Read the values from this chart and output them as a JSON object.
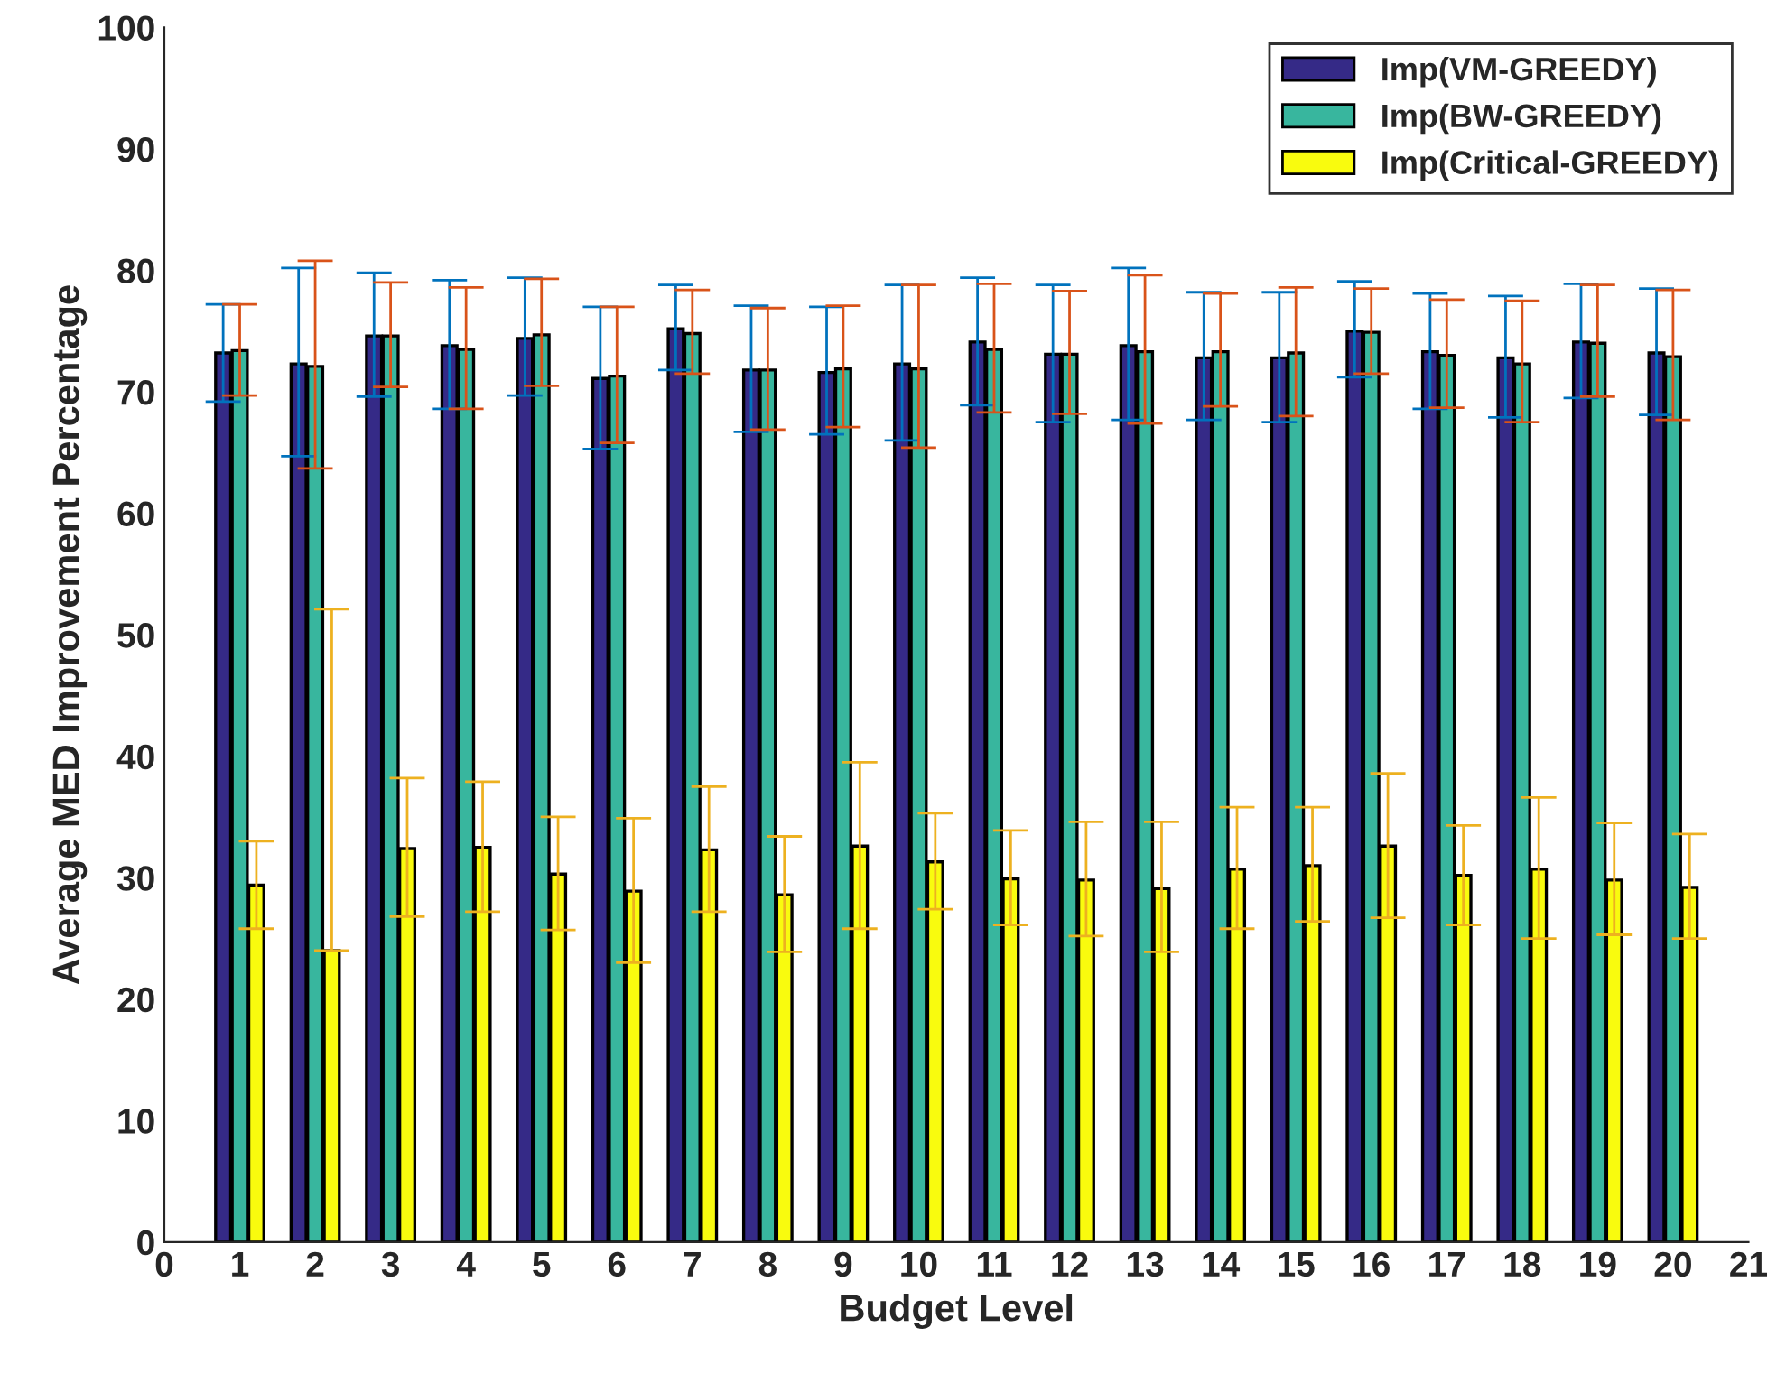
{
  "chart_data": {
    "type": "bar",
    "xlabel": "Budget Level",
    "ylabel": "Average MED Improvement Percentage",
    "x": [
      1,
      2,
      3,
      4,
      5,
      6,
      7,
      8,
      9,
      10,
      11,
      12,
      13,
      14,
      15,
      16,
      17,
      18,
      19,
      20
    ],
    "xlim": [
      0,
      21
    ],
    "xticks": [
      0,
      1,
      2,
      3,
      4,
      5,
      6,
      7,
      8,
      9,
      10,
      11,
      12,
      13,
      14,
      15,
      16,
      17,
      18,
      19,
      20,
      21
    ],
    "ylim": [
      0,
      100
    ],
    "yticks": [
      0,
      10,
      20,
      30,
      40,
      50,
      60,
      70,
      80,
      90,
      100
    ],
    "grid": false,
    "legend": "top right",
    "series": [
      {
        "name": "Imp(VM-GREEDY)",
        "color": "#352a87",
        "values": [
          73.2,
          72.3,
          74.6,
          73.8,
          74.4,
          71.1,
          75.2,
          71.8,
          71.6,
          72.3,
          74.1,
          73.1,
          73.8,
          72.8,
          72.8,
          75.0,
          73.3,
          72.8,
          74.1,
          73.2
        ],
        "errors": [
          [
            69.2,
            77.2
          ],
          [
            64.7,
            80.2
          ],
          [
            69.6,
            79.8
          ],
          [
            68.6,
            79.2
          ],
          [
            69.7,
            79.4
          ],
          [
            65.3,
            77.0
          ],
          [
            71.8,
            78.8
          ],
          [
            66.7,
            77.1
          ],
          [
            66.5,
            77.0
          ],
          [
            66.0,
            78.8
          ],
          [
            68.9,
            79.4
          ],
          [
            67.5,
            78.8
          ],
          [
            67.7,
            80.2
          ],
          [
            67.7,
            78.2
          ],
          [
            67.5,
            78.2
          ],
          [
            71.2,
            79.1
          ],
          [
            68.6,
            78.1
          ],
          [
            67.9,
            77.9
          ],
          [
            69.5,
            78.9
          ],
          [
            68.1,
            78.5
          ]
        ]
      },
      {
        "name": "Imp(BW-GREEDY)",
        "color": "#38b69e",
        "values": [
          73.4,
          72.1,
          74.6,
          73.5,
          74.7,
          71.3,
          74.8,
          71.8,
          71.9,
          71.9,
          73.5,
          73.1,
          73.3,
          73.3,
          73.2,
          74.9,
          73.0,
          72.3,
          74.0,
          72.9
        ],
        "errors": [
          [
            69.7,
            77.2
          ],
          [
            63.7,
            80.8
          ],
          [
            70.4,
            79.0
          ],
          [
            68.6,
            78.6
          ],
          [
            70.5,
            79.3
          ],
          [
            65.8,
            77.0
          ],
          [
            71.5,
            78.4
          ],
          [
            66.9,
            76.9
          ],
          [
            67.1,
            77.1
          ],
          [
            65.4,
            78.8
          ],
          [
            68.3,
            78.9
          ],
          [
            68.2,
            78.3
          ],
          [
            67.4,
            79.6
          ],
          [
            68.8,
            78.1
          ],
          [
            68.0,
            78.6
          ],
          [
            71.5,
            78.5
          ],
          [
            68.7,
            77.6
          ],
          [
            67.5,
            77.5
          ],
          [
            69.6,
            78.8
          ],
          [
            67.7,
            78.4
          ]
        ]
      },
      {
        "name": "Imp(Critical-GREEDY)",
        "color": "#f9fb0e",
        "values": [
          29.4,
          24.0,
          32.4,
          32.5,
          30.3,
          28.9,
          32.3,
          28.6,
          32.6,
          31.3,
          29.9,
          29.8,
          29.1,
          30.7,
          31.0,
          32.6,
          30.2,
          30.7,
          29.8,
          29.2
        ],
        "errors": [
          [
            25.8,
            33.0
          ],
          [
            24.0,
            52.1
          ],
          [
            26.8,
            38.2
          ],
          [
            27.2,
            37.9
          ],
          [
            25.7,
            35.0
          ],
          [
            23.0,
            34.9
          ],
          [
            27.2,
            37.5
          ],
          [
            23.9,
            33.4
          ],
          [
            25.8,
            39.5
          ],
          [
            27.4,
            35.3
          ],
          [
            26.1,
            33.9
          ],
          [
            25.2,
            34.6
          ],
          [
            23.9,
            34.6
          ],
          [
            25.8,
            35.8
          ],
          [
            26.4,
            35.8
          ],
          [
            26.7,
            38.6
          ],
          [
            26.1,
            34.3
          ],
          [
            25.0,
            36.6
          ],
          [
            25.3,
            34.5
          ],
          [
            25.0,
            33.6
          ]
        ]
      }
    ]
  }
}
